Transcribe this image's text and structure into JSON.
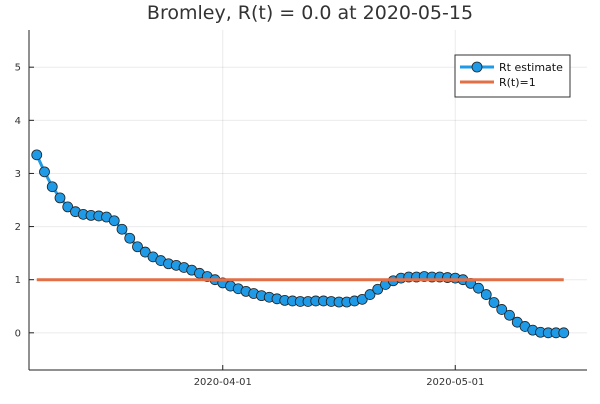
{
  "chart_data": {
    "type": "line",
    "title": "Bromley, R(t) = 0.0 at 2020-05-15",
    "xlabel": "",
    "ylabel": "",
    "x_ticks": [
      "2020-04-01",
      "2020-05-01"
    ],
    "y_ticks": [
      0,
      1,
      2,
      3,
      4,
      5
    ],
    "ylim": [
      -0.7,
      5.7
    ],
    "xlim": [
      "2020-03-07",
      "2020-05-18"
    ],
    "grid": true,
    "legend_position": "top-right",
    "series": [
      {
        "name": "Rt estimate",
        "color": "#1f9ae6",
        "marker": "circle",
        "x": [
          "2020-03-08",
          "2020-03-09",
          "2020-03-10",
          "2020-03-11",
          "2020-03-12",
          "2020-03-13",
          "2020-03-14",
          "2020-03-15",
          "2020-03-16",
          "2020-03-17",
          "2020-03-18",
          "2020-03-19",
          "2020-03-20",
          "2020-03-21",
          "2020-03-22",
          "2020-03-23",
          "2020-03-24",
          "2020-03-25",
          "2020-03-26",
          "2020-03-27",
          "2020-03-28",
          "2020-03-29",
          "2020-03-30",
          "2020-03-31",
          "2020-04-01",
          "2020-04-02",
          "2020-04-03",
          "2020-04-04",
          "2020-04-05",
          "2020-04-06",
          "2020-04-07",
          "2020-04-08",
          "2020-04-09",
          "2020-04-10",
          "2020-04-11",
          "2020-04-12",
          "2020-04-13",
          "2020-04-14",
          "2020-04-15",
          "2020-04-16",
          "2020-04-17",
          "2020-04-18",
          "2020-04-19",
          "2020-04-20",
          "2020-04-21",
          "2020-04-22",
          "2020-04-23",
          "2020-04-24",
          "2020-04-25",
          "2020-04-26",
          "2020-04-27",
          "2020-04-28",
          "2020-04-29",
          "2020-04-30",
          "2020-05-01",
          "2020-05-02",
          "2020-05-03",
          "2020-05-04",
          "2020-05-05",
          "2020-05-06",
          "2020-05-07",
          "2020-05-08",
          "2020-05-09",
          "2020-05-10",
          "2020-05-11",
          "2020-05-12",
          "2020-05-13",
          "2020-05-14",
          "2020-05-15"
        ],
        "values": [
          3.35,
          3.03,
          2.75,
          2.54,
          2.37,
          2.28,
          2.23,
          2.21,
          2.2,
          2.18,
          2.11,
          1.95,
          1.78,
          1.62,
          1.52,
          1.43,
          1.36,
          1.3,
          1.27,
          1.23,
          1.18,
          1.12,
          1.06,
          1.0,
          0.94,
          0.88,
          0.83,
          0.78,
          0.74,
          0.7,
          0.67,
          0.64,
          0.61,
          0.6,
          0.59,
          0.59,
          0.6,
          0.6,
          0.59,
          0.58,
          0.58,
          0.6,
          0.63,
          0.72,
          0.82,
          0.91,
          0.98,
          1.03,
          1.05,
          1.05,
          1.06,
          1.05,
          1.05,
          1.04,
          1.03,
          1.0,
          0.93,
          0.84,
          0.72,
          0.57,
          0.44,
          0.33,
          0.2,
          0.12,
          0.05,
          0.01,
          0.0,
          0.0,
          0.0
        ]
      },
      {
        "name": "R(t)=1",
        "color": "#e26f46",
        "marker": "none",
        "x": [
          "2020-03-08",
          "2020-05-15"
        ],
        "values": [
          1,
          1
        ]
      }
    ]
  }
}
